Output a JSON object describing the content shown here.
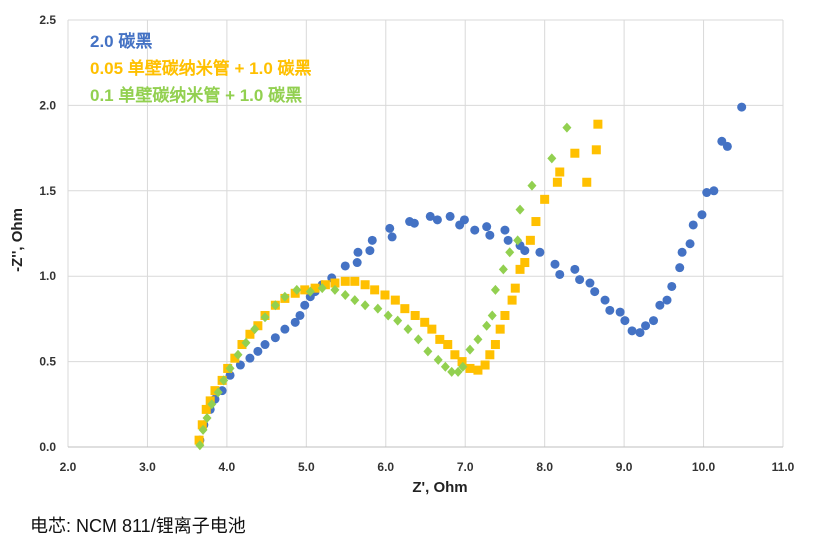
{
  "chart_data": {
    "type": "scatter",
    "title": "",
    "xlabel": "Z', Ohm",
    "ylabel": "-Z'', Ohm",
    "xlim": [
      2.0,
      11.0
    ],
    "ylim": [
      0.0,
      2.5
    ],
    "xticks": [
      "2.0",
      "3.0",
      "4.0",
      "5.0",
      "6.0",
      "7.0",
      "8.0",
      "9.0",
      "10.0",
      "11.0"
    ],
    "yticks": [
      "0.0",
      "0.5",
      "1.0",
      "1.5",
      "2.0",
      "2.5"
    ],
    "grid": true,
    "legend_position": "top-left",
    "series": [
      {
        "name": "2.0 碳黑",
        "color": "#4472C4",
        "marker": "circle",
        "x": [
          3.66,
          3.71,
          3.79,
          3.85,
          3.94,
          4.04,
          4.17,
          4.29,
          4.39,
          4.48,
          4.61,
          4.73,
          4.86,
          4.92,
          4.98,
          5.05,
          5.11,
          5.2,
          5.32,
          5.49,
          5.64,
          5.65,
          5.8,
          5.83,
          6.05,
          6.08,
          6.3,
          6.36,
          6.56,
          6.65,
          6.81,
          6.93,
          6.99,
          7.12,
          7.27,
          7.31,
          7.5,
          7.54,
          7.69,
          7.75,
          7.94,
          8.13,
          8.19,
          8.38,
          8.44,
          8.57,
          8.63,
          8.76,
          8.82,
          8.95,
          9.01,
          9.1,
          9.2,
          9.27,
          9.37,
          9.45,
          9.54,
          9.6,
          9.7,
          9.73,
          9.83,
          9.87,
          9.98,
          10.04,
          10.13,
          10.23,
          10.3,
          10.48
        ],
        "y": [
          0.04,
          0.13,
          0.22,
          0.28,
          0.33,
          0.42,
          0.48,
          0.52,
          0.56,
          0.6,
          0.64,
          0.69,
          0.73,
          0.77,
          0.83,
          0.88,
          0.91,
          0.95,
          0.99,
          1.06,
          1.08,
          1.14,
          1.15,
          1.21,
          1.28,
          1.23,
          1.32,
          1.31,
          1.35,
          1.33,
          1.35,
          1.3,
          1.33,
          1.27,
          1.29,
          1.24,
          1.27,
          1.21,
          1.18,
          1.15,
          1.14,
          1.07,
          1.01,
          1.04,
          0.98,
          0.96,
          0.91,
          0.86,
          0.8,
          0.79,
          0.74,
          0.68,
          0.67,
          0.71,
          0.74,
          0.83,
          0.86,
          0.94,
          1.05,
          1.14,
          1.19,
          1.3,
          1.36,
          1.49,
          1.5,
          1.79,
          1.76,
          1.99
        ]
      },
      {
        "name": "0.05 单壁碳纳米管 + 1.0 碳黑",
        "color": "#FFC000",
        "marker": "square",
        "x": [
          3.65,
          3.69,
          3.74,
          3.79,
          3.85,
          3.94,
          4.01,
          4.1,
          4.19,
          4.29,
          4.39,
          4.48,
          4.61,
          4.73,
          4.86,
          4.98,
          5.11,
          5.24,
          5.36,
          5.49,
          5.61,
          5.74,
          5.86,
          5.99,
          6.12,
          6.24,
          6.37,
          6.49,
          6.58,
          6.68,
          6.78,
          6.87,
          6.96,
          7.06,
          7.16,
          7.25,
          7.31,
          7.38,
          7.44,
          7.5,
          7.59,
          7.63,
          7.69,
          7.75,
          7.82,
          7.89,
          8.0,
          8.16,
          8.19,
          8.38,
          8.53,
          8.65,
          8.67
        ],
        "y": [
          0.04,
          0.13,
          0.22,
          0.27,
          0.33,
          0.39,
          0.46,
          0.52,
          0.6,
          0.66,
          0.71,
          0.77,
          0.83,
          0.87,
          0.9,
          0.92,
          0.93,
          0.95,
          0.96,
          0.97,
          0.97,
          0.95,
          0.92,
          0.89,
          0.86,
          0.81,
          0.77,
          0.73,
          0.69,
          0.63,
          0.6,
          0.54,
          0.5,
          0.46,
          0.45,
          0.48,
          0.54,
          0.6,
          0.69,
          0.77,
          0.86,
          0.93,
          1.04,
          1.08,
          1.21,
          1.32,
          1.45,
          1.55,
          1.61,
          1.72,
          1.55,
          1.74,
          1.89
        ]
      },
      {
        "name": "0.1 单壁碳纳米管 + 1.0 碳黑",
        "color": "#92D050",
        "marker": "diamond",
        "x": [
          3.66,
          3.7,
          3.75,
          3.81,
          3.89,
          3.96,
          4.04,
          4.14,
          4.24,
          4.35,
          4.48,
          4.61,
          4.73,
          4.88,
          5.05,
          5.2,
          5.36,
          5.49,
          5.61,
          5.74,
          5.9,
          6.03,
          6.15,
          6.28,
          6.41,
          6.53,
          6.66,
          6.75,
          6.83,
          6.91,
          6.97,
          7.06,
          7.16,
          7.27,
          7.34,
          7.38,
          7.48,
          7.56,
          7.66,
          7.69,
          7.84,
          8.09,
          8.28
        ],
        "y": [
          0.01,
          0.1,
          0.17,
          0.25,
          0.32,
          0.39,
          0.46,
          0.54,
          0.61,
          0.69,
          0.76,
          0.83,
          0.88,
          0.92,
          0.91,
          0.93,
          0.92,
          0.89,
          0.86,
          0.83,
          0.81,
          0.77,
          0.74,
          0.69,
          0.63,
          0.56,
          0.51,
          0.47,
          0.44,
          0.44,
          0.47,
          0.57,
          0.63,
          0.71,
          0.77,
          0.92,
          1.04,
          1.14,
          1.21,
          1.39,
          1.53,
          1.69,
          1.87
        ]
      }
    ]
  },
  "caption": "电芯: NCM 811/锂离子电池"
}
